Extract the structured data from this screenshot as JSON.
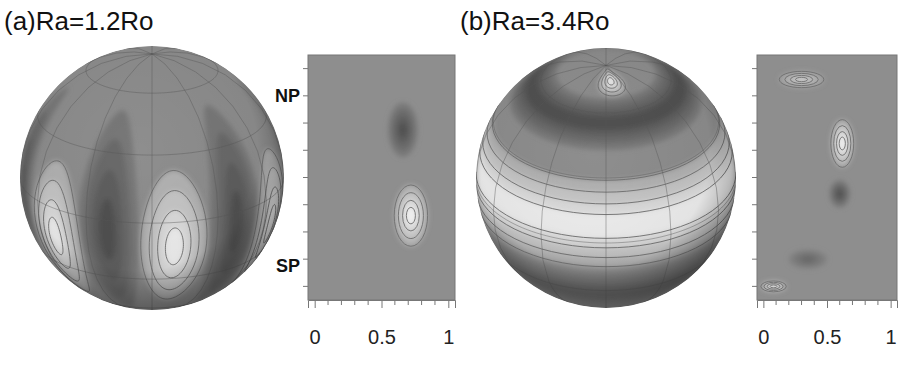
{
  "chart_data": [
    {
      "type": "contour",
      "title": "(a)Ra=1.2Ro",
      "sphere": [
        {
          "lon": -80,
          "lat": -5,
          "lon_width": 28,
          "lat_height": 110,
          "value": -0.8
        },
        {
          "lon": -49,
          "lat": -14,
          "lon_width": 30,
          "lat_height": 70,
          "value": 1
        },
        {
          "lon": -20,
          "lat": -5,
          "lon_width": 28,
          "lat_height": 110,
          "value": -0.8
        },
        {
          "lon": 10,
          "lat": -12,
          "lon_width": 30,
          "lat_height": 70,
          "value": 1
        },
        {
          "lon": 40,
          "lat": -5,
          "lon_width": 28,
          "lat_height": 110,
          "value": -0.8
        },
        {
          "lon": 68,
          "lat": -14,
          "lon_width": 30,
          "lat_height": 70,
          "value": 1
        },
        {
          "lon": 98,
          "lat": -5,
          "lon_width": 28,
          "lat_height": 110,
          "value": -0.8
        }
      ],
      "cells": [
        {
          "x": 0.66,
          "y": 0.35,
          "width": 0.22,
          "height": 0.4,
          "value": -0.8
        },
        {
          "x": 0.72,
          "y": -0.28,
          "width": 0.25,
          "height": 0.45,
          "value": 1
        }
      ],
      "annotations": [
        {
          "text": "NP",
          "y": 0.6
        },
        {
          "text": "SP",
          "y": -0.65
        }
      ],
      "xlim": [
        -0.05,
        1.05
      ],
      "xticks": [
        0,
        0.5,
        1
      ],
      "minor_xticks": [
        0.1,
        0.2,
        0.3,
        0.4,
        0.6,
        0.7,
        0.8,
        0.9
      ],
      "ylim": [
        -0.9,
        0.9
      ],
      "yticks": [
        -0.8,
        -0.6,
        -0.4,
        -0.2,
        0,
        0.2,
        0.4,
        0.6,
        0.8
      ],
      "tick_labels": "x"
    },
    {
      "type": "contour",
      "title": "(b)Ra=3.4Ro",
      "sphere": [
        {
          "lon": 0,
          "lat": -32,
          "lon_width": 360,
          "lat_height": 30,
          "value": -0.5
        },
        {
          "lon": 0,
          "lat": 8,
          "lon_width": 360,
          "lat_height": 42,
          "value": 1
        },
        {
          "lon": 0,
          "lat": 55,
          "lon_width": 360,
          "lat_height": 25,
          "value": -0.8
        },
        {
          "lon": 10,
          "lat": 78,
          "lon_width": 50,
          "lat_height": 18,
          "value": 1
        }
      ],
      "cells": [
        {
          "x": 0.3,
          "y": 0.72,
          "width": 0.35,
          "height": 0.12,
          "value": 0.6
        },
        {
          "x": 0.62,
          "y": 0.25,
          "width": 0.18,
          "height": 0.35,
          "value": 1
        },
        {
          "x": 0.6,
          "y": -0.12,
          "width": 0.16,
          "height": 0.2,
          "value": -0.8
        },
        {
          "x": 0.35,
          "y": -0.6,
          "width": 0.3,
          "height": 0.14,
          "value": -0.5
        },
        {
          "x": 0.08,
          "y": -0.8,
          "width": 0.2,
          "height": 0.08,
          "value": 0.9
        }
      ],
      "xlim": [
        -0.05,
        1.05
      ],
      "xticks": [
        0,
        0.5,
        1
      ],
      "minor_xticks": [
        0.1,
        0.2,
        0.3,
        0.4,
        0.6,
        0.7,
        0.8,
        0.9
      ],
      "ylim": [
        -0.9,
        0.9
      ],
      "yticks": [
        -0.8,
        -0.6,
        -0.4,
        -0.2,
        0,
        0.2,
        0.4,
        0.6,
        0.8
      ],
      "tick_labels": "x"
    }
  ]
}
